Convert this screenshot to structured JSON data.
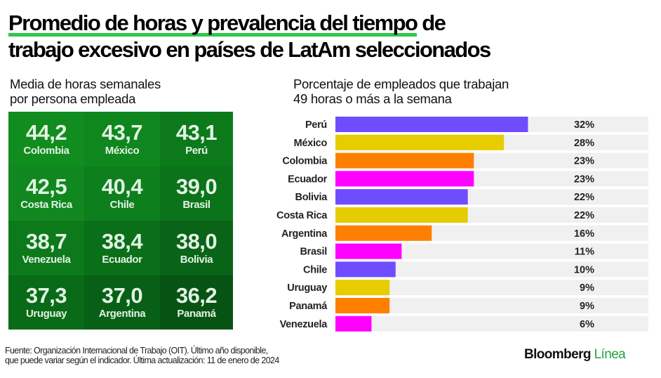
{
  "title": {
    "highlighted": "Promedio de horas y prevalencia del tiempo",
    "rest_line1": " de",
    "line2": "trabajo excesivo en países de LatAm seleccionados"
  },
  "left_panel": {
    "subtitle_line1": "Media de horas semanales",
    "subtitle_line2": "por persona empleada",
    "tiles": [
      {
        "value": "44,2",
        "country": "Colombia",
        "color": "#118c1f"
      },
      {
        "value": "43,7",
        "country": "México",
        "color": "#0f861e"
      },
      {
        "value": "43,1",
        "country": "Perú",
        "color": "#0c7a1b"
      },
      {
        "value": "42,5",
        "country": "Costa Rica",
        "color": "#10881f"
      },
      {
        "value": "40,4",
        "country": "Chile",
        "color": "#0e7f1d"
      },
      {
        "value": "39,0",
        "country": "Brasil",
        "color": "#0b731a"
      },
      {
        "value": "38,7",
        "country": "Venezuela",
        "color": "#0c7a1b"
      },
      {
        "value": "38,4",
        "country": "Ecuador",
        "color": "#0a6f19"
      },
      {
        "value": "38,0",
        "country": "Bolivia",
        "color": "#096417"
      },
      {
        "value": "37,3",
        "country": "Uruguay",
        "color": "#096a18"
      },
      {
        "value": "37,0",
        "country": "Argentina",
        "color": "#086016"
      },
      {
        "value": "36,2",
        "country": "Panamá",
        "color": "#075314"
      }
    ]
  },
  "right_panel": {
    "subtitle_line1": "Porcentaje de empleados que trabajan",
    "subtitle_line2": "49 horas o más a la semana"
  },
  "chart_data": {
    "type": "bar",
    "orientation": "horizontal",
    "title": "Porcentaje de empleados que trabajan 49 horas o más a la semana",
    "categories": [
      "Perú",
      "México",
      "Colombia",
      "Ecuador",
      "Bolivia",
      "Costa Rica",
      "Argentina",
      "Brasil",
      "Chile",
      "Uruguay",
      "Panamá",
      "Venezuela"
    ],
    "values": [
      32,
      28,
      23,
      23,
      22,
      22,
      16,
      11,
      10,
      9,
      9,
      6
    ],
    "value_labels": [
      "32%",
      "28%",
      "23%",
      "23%",
      "22%",
      "22%",
      "16%",
      "11%",
      "10%",
      "9%",
      "9%",
      "6%"
    ],
    "colors": [
      "#6f4dff",
      "#e6cc00",
      "#ff7f00",
      "#ff00ff",
      "#6f4dff",
      "#e6cc00",
      "#ff7f00",
      "#ff00ff",
      "#6f4dff",
      "#e6cc00",
      "#ff7f00",
      "#ff00ff"
    ],
    "track_color": "#f0f0f0",
    "xlim": [
      0,
      52
    ],
    "unit": "%",
    "grid": false,
    "legend": "none"
  },
  "footer": {
    "line1": "Fuente: Organización Internacional de Trabajo (OIT). Último año disponible,",
    "line2": "que puede variar según el indicador. Última actualización: 11 de enero de 2024"
  },
  "brand": {
    "name": "Bloomberg",
    "accent": "Línea"
  }
}
